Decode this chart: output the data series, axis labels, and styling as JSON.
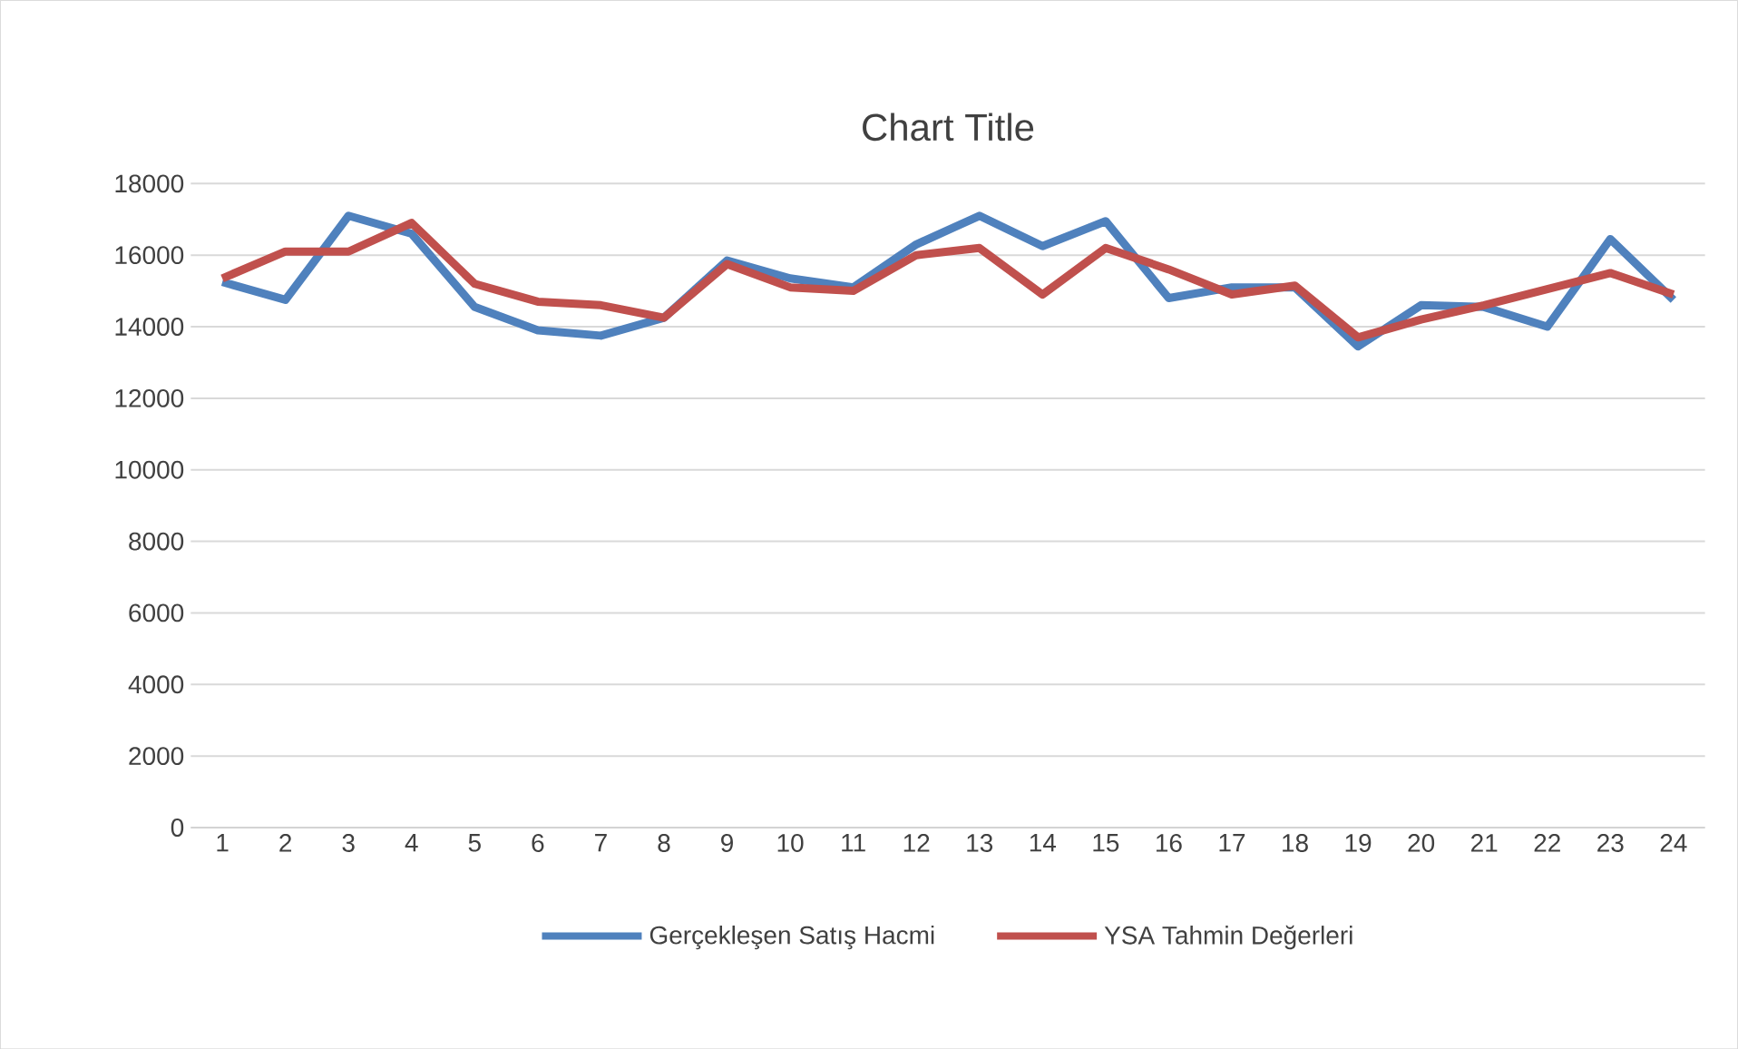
{
  "chart_data": {
    "type": "line",
    "title": "Chart Title",
    "categories": [
      "1",
      "2",
      "3",
      "4",
      "5",
      "6",
      "7",
      "8",
      "9",
      "10",
      "11",
      "12",
      "13",
      "14",
      "15",
      "16",
      "17",
      "18",
      "19",
      "20",
      "21",
      "22",
      "23",
      "24"
    ],
    "series": [
      {
        "name": "Gerçekleşen Satış Hacmi",
        "color": "#4f81bd",
        "values": [
          15250,
          14750,
          17100,
          16600,
          14550,
          13900,
          13750,
          14250,
          15850,
          15350,
          15100,
          16300,
          17100,
          16250,
          16950,
          14800,
          15100,
          15100,
          13450,
          14600,
          14550,
          14000,
          16450,
          14750
        ]
      },
      {
        "name": "YSA Tahmin Değerleri",
        "color": "#c0504d",
        "values": [
          15350,
          16100,
          16100,
          16900,
          15200,
          14700,
          14600,
          14250,
          15750,
          15100,
          15000,
          16000,
          16200,
          14900,
          16200,
          15600,
          14900,
          15150,
          13700,
          14200,
          14600,
          15050,
          15500,
          14900
        ]
      }
    ],
    "ylim": [
      0,
      18000
    ],
    "yticks": [
      0,
      2000,
      4000,
      6000,
      8000,
      10000,
      12000,
      14000,
      16000,
      18000
    ],
    "grid": "y",
    "legend": "bottom",
    "marker": "none",
    "line_style": "solid"
  }
}
